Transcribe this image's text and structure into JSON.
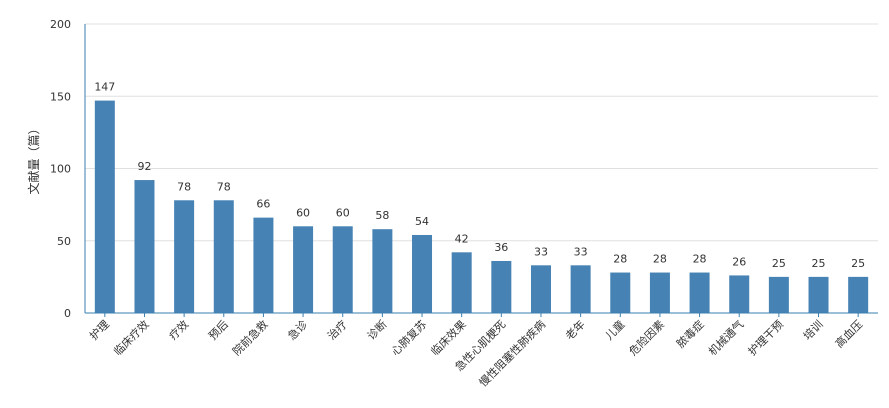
{
  "chart_data": {
    "type": "bar",
    "ylabel": "文献量（篇）",
    "ylim": [
      0,
      200
    ],
    "yticks": [
      0,
      50,
      100,
      150,
      200
    ],
    "grid": true,
    "bar_color": "#4682b4",
    "categories": [
      "护理",
      "临床疗效",
      "疗效",
      "预后",
      "院前急救",
      "急诊",
      "治疗",
      "诊断",
      "心肺复苏",
      "临床效果",
      "急性心肌梗死",
      "慢性阻塞性肺疾病",
      "老年",
      "儿童",
      "危险因素",
      "脓毒症",
      "机械通气",
      "护理干预",
      "培训",
      "高血压"
    ],
    "values": [
      147,
      92,
      78,
      78,
      66,
      60,
      60,
      58,
      54,
      42,
      36,
      33,
      33,
      28,
      28,
      28,
      26,
      25,
      25,
      25
    ]
  }
}
